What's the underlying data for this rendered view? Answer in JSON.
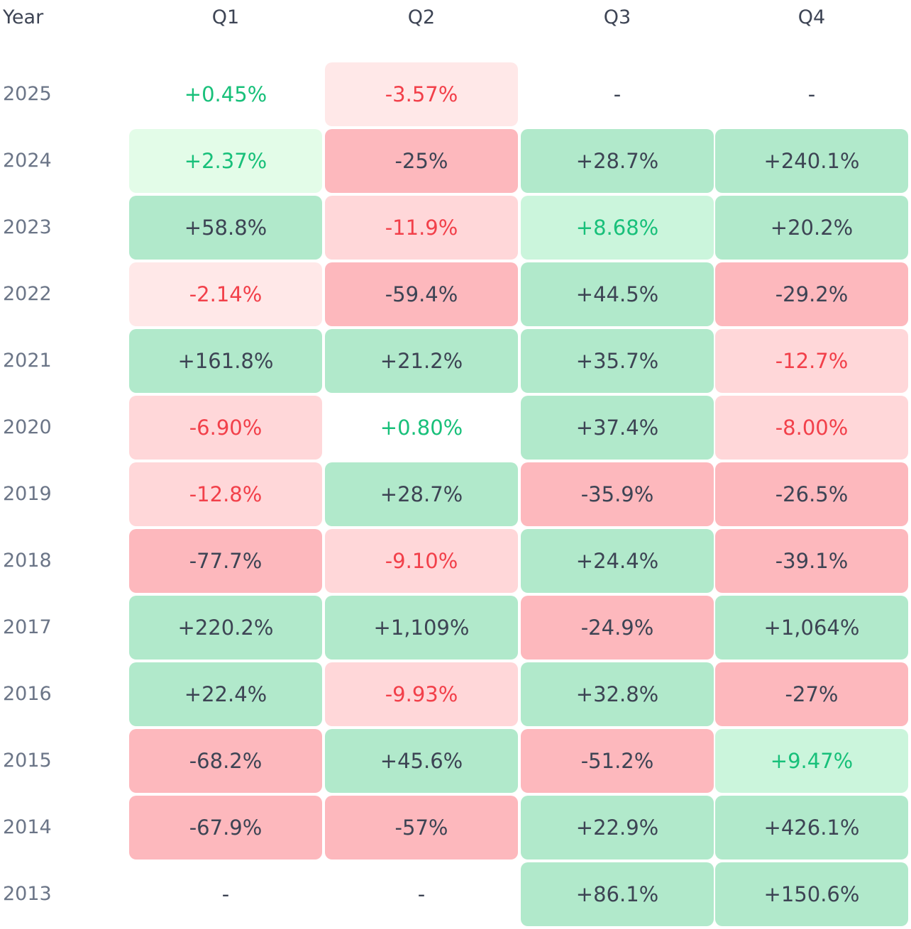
{
  "chart_data": {
    "type": "heatmap",
    "row_header": "Year",
    "columns": [
      "Q1",
      "Q2",
      "Q3",
      "Q4"
    ],
    "rows": [
      {
        "year": "2025",
        "cells": [
          {
            "label": "+0.45%",
            "value": 0.45
          },
          {
            "label": "-3.57%",
            "value": -3.57
          },
          {
            "label": "-",
            "value": null
          },
          {
            "label": "-",
            "value": null
          }
        ]
      },
      {
        "year": "2024",
        "cells": [
          {
            "label": "+2.37%",
            "value": 2.37
          },
          {
            "label": "-25%",
            "value": -25
          },
          {
            "label": "+28.7%",
            "value": 28.7
          },
          {
            "label": "+240.1%",
            "value": 240.1
          }
        ]
      },
      {
        "year": "2023",
        "cells": [
          {
            "label": "+58.8%",
            "value": 58.8
          },
          {
            "label": "-11.9%",
            "value": -11.9
          },
          {
            "label": "+8.68%",
            "value": 8.68
          },
          {
            "label": "+20.2%",
            "value": 20.2
          }
        ]
      },
      {
        "year": "2022",
        "cells": [
          {
            "label": "-2.14%",
            "value": -2.14
          },
          {
            "label": "-59.4%",
            "value": -59.4
          },
          {
            "label": "+44.5%",
            "value": 44.5
          },
          {
            "label": "-29.2%",
            "value": -29.2
          }
        ]
      },
      {
        "year": "2021",
        "cells": [
          {
            "label": "+161.8%",
            "value": 161.8
          },
          {
            "label": "+21.2%",
            "value": 21.2
          },
          {
            "label": "+35.7%",
            "value": 35.7
          },
          {
            "label": "-12.7%",
            "value": -12.7
          }
        ]
      },
      {
        "year": "2020",
        "cells": [
          {
            "label": "-6.90%",
            "value": -6.9
          },
          {
            "label": "+0.80%",
            "value": 0.8
          },
          {
            "label": "+37.4%",
            "value": 37.4
          },
          {
            "label": "-8.00%",
            "value": -8.0
          }
        ]
      },
      {
        "year": "2019",
        "cells": [
          {
            "label": "-12.8%",
            "value": -12.8
          },
          {
            "label": "+28.7%",
            "value": 28.7
          },
          {
            "label": "-35.9%",
            "value": -35.9
          },
          {
            "label": "-26.5%",
            "value": -26.5
          }
        ]
      },
      {
        "year": "2018",
        "cells": [
          {
            "label": "-77.7%",
            "value": -77.7
          },
          {
            "label": "-9.10%",
            "value": -9.1
          },
          {
            "label": "+24.4%",
            "value": 24.4
          },
          {
            "label": "-39.1%",
            "value": -39.1
          }
        ]
      },
      {
        "year": "2017",
        "cells": [
          {
            "label": "+220.2%",
            "value": 220.2
          },
          {
            "label": "+1,109%",
            "value": 1109
          },
          {
            "label": "-24.9%",
            "value": -24.9
          },
          {
            "label": "+1,064%",
            "value": 1064
          }
        ]
      },
      {
        "year": "2016",
        "cells": [
          {
            "label": "+22.4%",
            "value": 22.4
          },
          {
            "label": "-9.93%",
            "value": -9.93
          },
          {
            "label": "+32.8%",
            "value": 32.8
          },
          {
            "label": "-27%",
            "value": -27
          }
        ]
      },
      {
        "year": "2015",
        "cells": [
          {
            "label": "-68.2%",
            "value": -68.2
          },
          {
            "label": "+45.6%",
            "value": 45.6
          },
          {
            "label": "-51.2%",
            "value": -51.2
          },
          {
            "label": "+9.47%",
            "value": 9.47
          }
        ]
      },
      {
        "year": "2014",
        "cells": [
          {
            "label": "-67.9%",
            "value": -67.9
          },
          {
            "label": "-57%",
            "value": -57
          },
          {
            "label": "+22.9%",
            "value": 22.9
          },
          {
            "label": "+426.1%",
            "value": 426.1
          }
        ]
      },
      {
        "year": "2013",
        "cells": [
          {
            "label": "-",
            "value": null
          },
          {
            "label": "-",
            "value": null
          },
          {
            "label": "+86.1%",
            "value": 86.1
          },
          {
            "label": "+150.6%",
            "value": 150.6
          }
        ]
      }
    ]
  },
  "colors": {
    "positive_strong_bg": "#b1e9cb",
    "positive_medium_bg": "#cbf5dc",
    "positive_light_bg": "#e3fce8",
    "negative_strong_bg": "#fdb8bd",
    "negative_medium_bg": "#ffd7d9",
    "negative_light_bg": "#ffe8e8",
    "text_dark": "#3d4454",
    "text_green": "#18c07a",
    "text_red": "#f2404a",
    "year_label": "#6b7587"
  }
}
